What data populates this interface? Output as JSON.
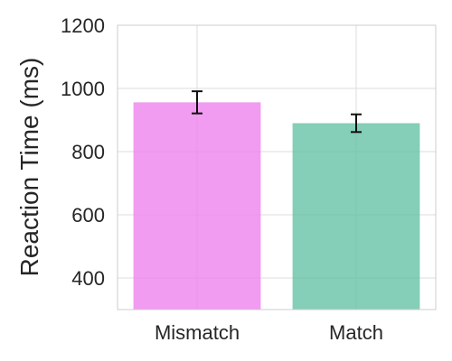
{
  "chart_data": {
    "type": "bar",
    "categories": [
      "Mismatch",
      "Match"
    ],
    "values": [
      956,
      890
    ],
    "errors": [
      35,
      28
    ],
    "colors": [
      "#ee82ee",
      "#66c2a5"
    ],
    "ylabel": "Reaction Time (ms)",
    "xlabel": "",
    "ylim": [
      300,
      1200
    ],
    "yticks": [
      400,
      600,
      800,
      1000,
      1200
    ],
    "grid": true
  }
}
